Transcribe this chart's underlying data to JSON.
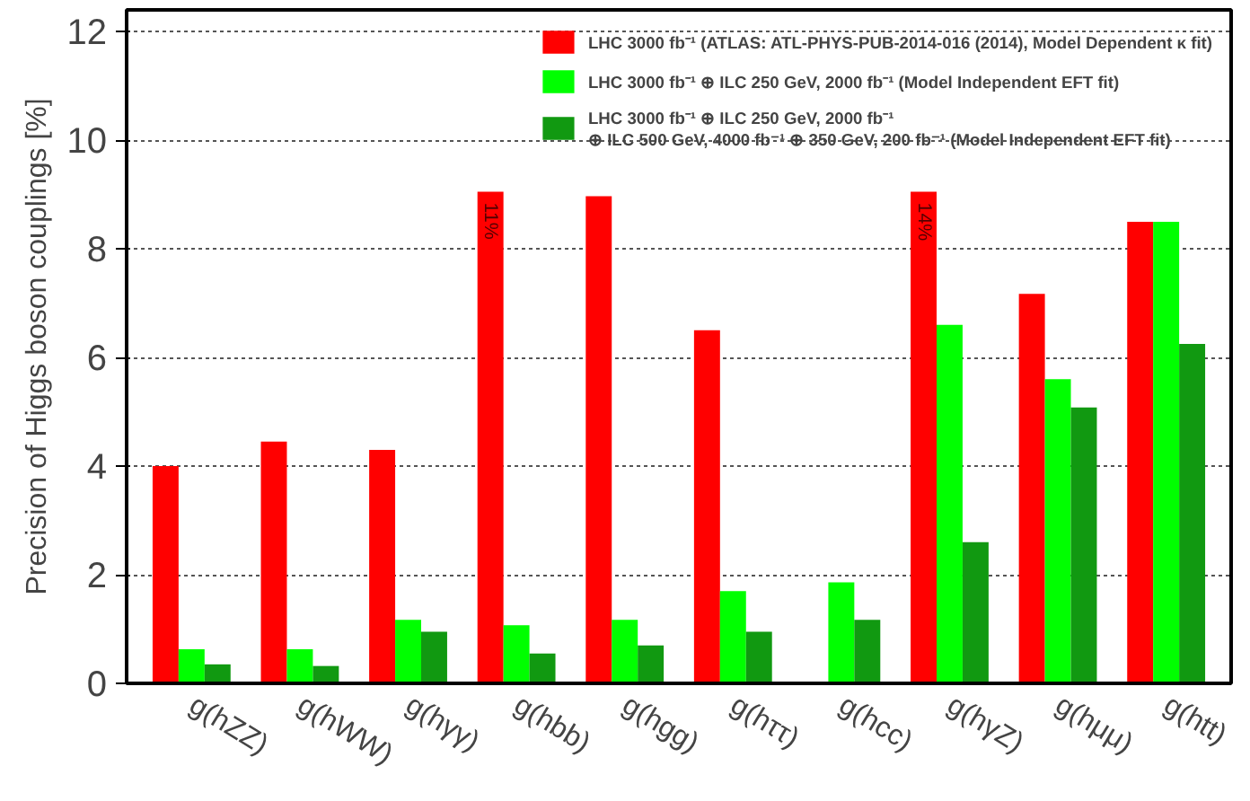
{
  "chart_data": {
    "type": "bar",
    "ylabel": "Precision of Higgs boson couplings [%]",
    "categories": [
      "g(hZZ)",
      "g(hWW)",
      "g(hγγ)",
      "g(hbb)",
      "g(hgg)",
      "g(hττ)",
      "g(hcc)",
      "g(hγZ)",
      "g(hμμ)",
      "g(htt)"
    ],
    "series": [
      {
        "name": "LHC 3000 fb⁻¹ (ATLAS: ATL-PHYS-PUB-2014-016 (2014), Model Dependent κ fit)",
        "color": "#ff0000",
        "values": [
          4.0,
          4.45,
          4.3,
          9.05,
          8.97,
          6.5,
          null,
          9.05,
          7.17,
          8.5
        ]
      },
      {
        "name": "LHC 3000 fb⁻¹ ⊕ ILC 250 GeV, 2000 fb⁻¹ (Model Independent EFT fit)",
        "color": "#00ff00",
        "values": [
          0.63,
          0.63,
          1.17,
          1.07,
          1.17,
          1.7,
          1.86,
          6.6,
          5.6,
          8.5
        ]
      },
      {
        "name": "LHC 3000 fb⁻¹ ⊕ ILC 250 GeV, 2000 fb⁻¹\n⊕ ILC 500 GeV, 4000 fb⁻¹ ⊕ 350 GeV, 200 fb⁻¹ (Model Independent EFT fit)",
        "color": "#119911",
        "values": [
          0.35,
          0.32,
          0.95,
          0.55,
          0.7,
          0.95,
          1.17,
          2.6,
          5.08,
          6.25
        ]
      }
    ],
    "annotations": [
      "11%",
      "14%"
    ],
    "ylim": [
      0,
      12.4
    ],
    "yticks": [
      0,
      2,
      4,
      6,
      8,
      10,
      12
    ],
    "grid": "y",
    "legend": "top right"
  }
}
